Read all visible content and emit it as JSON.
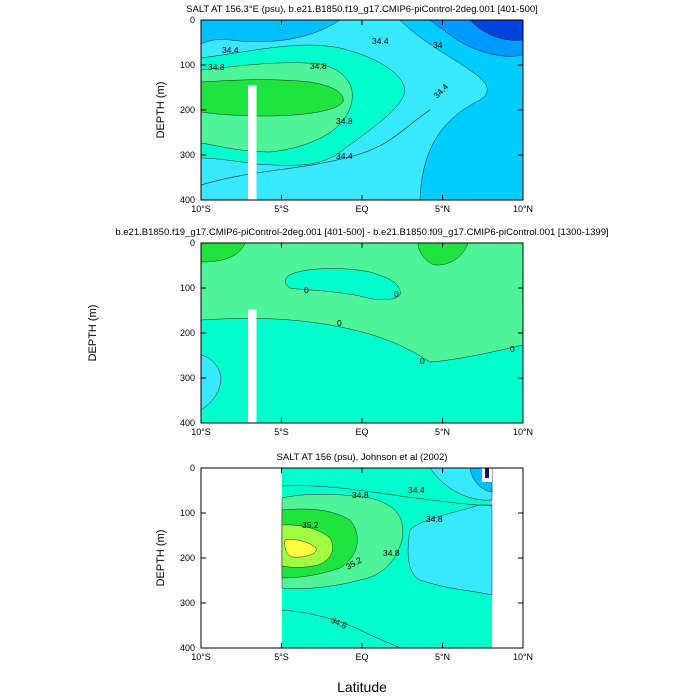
{
  "figure": {
    "xlabel_bottom": "Latitude"
  },
  "chart_data": [
    {
      "type": "contour",
      "title": "SALT AT 156.3°E (psu), b.e21.B1850.f19_g17.CMIP6-piControl-2deg.001 [401-500]",
      "ylabel": "DEPTH (m)",
      "xlim": [
        -10,
        10
      ],
      "ylim": [
        400,
        0
      ],
      "x_ticks": [
        -10,
        -5,
        0,
        5,
        10
      ],
      "x_tick_labels": [
        "10°S",
        "5°S",
        "EQ",
        "5°N",
        "10°N"
      ],
      "y_ticks": [
        0,
        100,
        200,
        300,
        400
      ],
      "y_tick_labels": [
        "0",
        "100",
        "200",
        "300",
        "400"
      ],
      "contour_labels": [
        {
          "text": "34.4",
          "x": -8.2,
          "y": 60
        },
        {
          "text": "34.8",
          "x": -9.0,
          "y": 115
        },
        {
          "text": "34.8",
          "x": -2.6,
          "y": 105
        },
        {
          "text": "34.4",
          "x": 1.0,
          "y": 25
        },
        {
          "text": "34",
          "x": 4.3,
          "y": 30
        },
        {
          "text": "34.4",
          "x": 4.6,
          "y": 140
        },
        {
          "text": "34.8",
          "x": -1.0,
          "y": 230
        },
        {
          "text": "34.4",
          "x": -1.0,
          "y": 305
        }
      ],
      "missing_columns": [
        {
          "from": -7.0,
          "to": -6.5
        }
      ]
    },
    {
      "type": "contour",
      "title": "b.e21.B1850.f19_g17.CMIP6-piControl-2deg.001 [401-500] - b.e21.B1850.f09_g17.CMIP6-piControl.001 [1300-1399]",
      "ylabel": "DEPTH (m)",
      "xlim": [
        -10,
        10
      ],
      "ylim": [
        400,
        0
      ],
      "x_ticks": [
        -10,
        -5,
        0,
        5,
        10
      ],
      "x_tick_labels": [
        "10°S",
        "5°S",
        "EQ",
        "5°N",
        "10°N"
      ],
      "y_ticks": [
        0,
        100,
        200,
        300,
        400
      ],
      "y_tick_labels": [
        "0",
        "100",
        "200",
        "300",
        "400"
      ],
      "contour_labels": [
        {
          "text": "0",
          "x": -3.5,
          "y": 115
        },
        {
          "text": "0",
          "x": 2.5,
          "y": 130
        },
        {
          "text": "0",
          "x": -1.5,
          "y": 215
        },
        {
          "text": "0",
          "x": 4.0,
          "y": 310
        },
        {
          "text": "0",
          "x": 9.6,
          "y": 275
        }
      ],
      "missing_columns": [
        {
          "from": -7.0,
          "to": -6.5
        }
      ]
    },
    {
      "type": "contour",
      "title": "SALT AT 156 (psu), Johnson et al (2002)",
      "ylabel": "DEPTH (m)",
      "xlim": [
        -10,
        10
      ],
      "ylim": [
        400,
        0
      ],
      "data_xrange": [
        -5,
        8
      ],
      "x_ticks": [
        -10,
        -5,
        0,
        5,
        10
      ],
      "x_tick_labels": [
        "10°S",
        "5°S",
        "EQ",
        "5°N",
        "10°N"
      ],
      "y_ticks": [
        0,
        100,
        200,
        300,
        400
      ],
      "y_tick_labels": [
        "0",
        "100",
        "200",
        "300",
        "400"
      ],
      "contour_labels": [
        {
          "text": "34.8",
          "x": -0.6,
          "y": 55
        },
        {
          "text": "34.4",
          "x": 3.5,
          "y": 50
        },
        {
          "text": "34.8",
          "x": 4.4,
          "y": 110
        },
        {
          "text": "35.2",
          "x": -4.0,
          "y": 120
        },
        {
          "text": "35.2",
          "x": -0.6,
          "y": 215
        },
        {
          "text": "34.8",
          "x": 1.6,
          "y": 195
        },
        {
          "text": "34.8",
          "x": -1.3,
          "y": 335
        }
      ]
    }
  ]
}
